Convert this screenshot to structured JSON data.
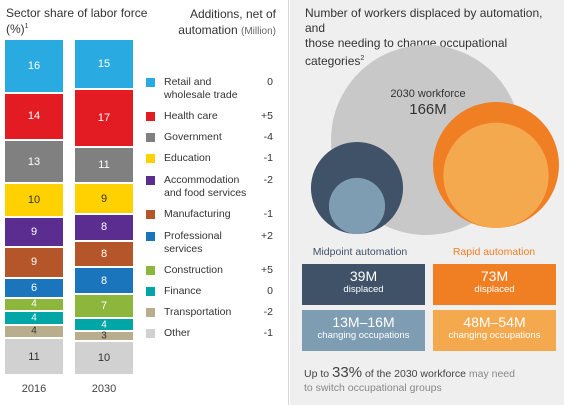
{
  "left_panel": {
    "title_line1": "Sector share of labor force",
    "title_line2": "(%)",
    "title_sup": "1",
    "additions_title_line1": "Additions, net of",
    "additions_title_line2": "automation",
    "additions_unit": "(Million)"
  },
  "chart_data": [
    {
      "type": "bar",
      "stacked": true,
      "title": "Sector share of labor force (%)",
      "categories": [
        "2016",
        "2030"
      ],
      "series": [
        {
          "name": "Retail and wholesale trade",
          "values": [
            16,
            15
          ],
          "color": "#29abe2",
          "addition": "0"
        },
        {
          "name": "Health care",
          "values": [
            14,
            17
          ],
          "color": "#e31b23",
          "addition": "+5"
        },
        {
          "name": "Government",
          "values": [
            13,
            11
          ],
          "color": "#808080",
          "addition": "-4"
        },
        {
          "name": "Education",
          "values": [
            10,
            9
          ],
          "color": "#ffd100",
          "addition": "-1"
        },
        {
          "name": "Accommodation and food services",
          "values": [
            9,
            8
          ],
          "color": "#5c2d91",
          "addition": "-2"
        },
        {
          "name": "Manufacturing",
          "values": [
            9,
            8
          ],
          "color": "#b5562a",
          "addition": "-1"
        },
        {
          "name": "Professional services",
          "values": [
            6,
            8
          ],
          "color": "#1b75bc",
          "addition": "+2"
        },
        {
          "name": "Construction",
          "values": [
            4,
            7
          ],
          "color": "#8cb63c",
          "addition": "+5"
        },
        {
          "name": "Finance",
          "values": [
            4,
            4
          ],
          "color": "#00a6a6",
          "addition": "0"
        },
        {
          "name": "Transportation",
          "values": [
            4,
            3
          ],
          "color": "#b8ad8c",
          "addition": "-2"
        },
        {
          "name": "Other",
          "values": [
            11,
            10
          ],
          "color": "#d1d1d1",
          "addition": "-1"
        }
      ],
      "legend_labels": [
        [
          "Retail and",
          "wholesale trade"
        ],
        [
          "Health care"
        ],
        [
          "Government"
        ],
        [
          "Education"
        ],
        [
          "Accommodation",
          "and food services"
        ],
        [
          "Manufacturing"
        ],
        [
          "Professional",
          "services"
        ],
        [
          "Construction"
        ],
        [
          "Finance"
        ],
        [
          "Transportation"
        ],
        [
          "Other"
        ]
      ],
      "legend_placement": "right"
    },
    {
      "type": "bubble",
      "title": "Number of workers displaced by automation, and those needing to change occupational categories",
      "workforce": {
        "label": "2030 workforce",
        "value": 166,
        "text": "166M"
      },
      "scenarios": [
        {
          "name": "Midpoint automation",
          "displaced": 39,
          "displaced_text": "39M",
          "changing_low": 13,
          "changing_high": 16,
          "changing_text": "13M–16M"
        },
        {
          "name": "Rapid automation",
          "displaced": 73,
          "displaced_text": "73M",
          "changing_low": 48,
          "changing_high": 54,
          "changing_text": "48M–54M"
        }
      ]
    }
  ],
  "right_panel": {
    "title_line1": "Number of workers displaced by automation, and",
    "title_line2": "those needing to change occupational categories",
    "title_sup": "2",
    "displaced_label": "displaced",
    "changing_label": "changing occupations",
    "footer_prefix": "Up to ",
    "footer_pct": "33%",
    "footer_mid": " of the 2030 workforce ",
    "footer_grey": "may need",
    "footer_line2": "to switch occupational groups"
  },
  "colors": {
    "midpoint_dark": "#3f5268",
    "midpoint_light": "#7e9db3",
    "rapid_dark": "#f07f24",
    "rapid_light": "#f5a94f",
    "workforce_grey": "#c8c8c8"
  }
}
